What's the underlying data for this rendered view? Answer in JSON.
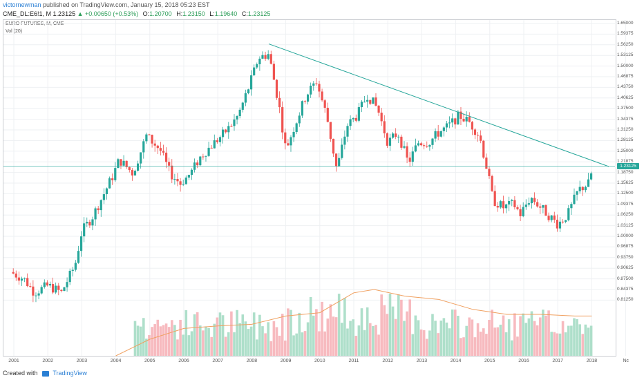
{
  "header": {
    "author": "victornewman",
    "published": "published on TradingView.com, January 15, 2018 05:23 EST"
  },
  "info": {
    "symbol": "CME_DL:E6!1, M",
    "price": "1.23125",
    "change_icon": "triangle-up-icon",
    "change": "+0.00650 (+0.53%)",
    "o_label": "O:",
    "o": "1.20700",
    "h_label": "H:",
    "h": "1.23150",
    "l_label": "L:",
    "l": "1.19640",
    "c_label": "C:",
    "c": "1.23125"
  },
  "legend": {
    "title": "EURO FUTURES, M, CME",
    "volume": "Vol (20)"
  },
  "colors": {
    "up": "#26a69a",
    "down": "#ef5350",
    "accent": "#2a7fd4",
    "trendline": "#26a69a",
    "ma": "#f0a060"
  },
  "chart_data": {
    "type": "candlestick",
    "price_axis": [
      "1.65000",
      "1.59375",
      "1.56250",
      "1.53125",
      "1.50000",
      "1.46875",
      "1.43750",
      "1.40625",
      "1.37500",
      "1.34375",
      "1.31250",
      "1.28125",
      "1.25000",
      "1.21875",
      "1.18750",
      "1.15625",
      "1.12500",
      "1.09375",
      "1.06250",
      "1.03125",
      "1.00000",
      "0.96875",
      "0.93750",
      "0.90625",
      "0.87500",
      "0.84375",
      "0.81250"
    ],
    "x_labels": [
      "2001",
      "2002",
      "2003",
      "2004",
      "2005",
      "2006",
      "2007",
      "2008",
      "2009",
      "2010",
      "2011",
      "2012",
      "2013",
      "2014",
      "2015",
      "2016",
      "2017",
      "2018",
      "Nc"
    ],
    "last_price": "1.23125",
    "price_path": [
      [
        2000.9,
        0.92
      ],
      [
        2001.3,
        0.9
      ],
      [
        2001.6,
        0.86
      ],
      [
        2002.0,
        0.88
      ],
      [
        2002.4,
        0.86
      ],
      [
        2002.8,
        0.94
      ],
      [
        2003.0,
        1.04
      ],
      [
        2003.3,
        1.08
      ],
      [
        2003.6,
        1.14
      ],
      [
        2003.9,
        1.2
      ],
      [
        2004.1,
        1.25
      ],
      [
        2004.5,
        1.21
      ],
      [
        2004.9,
        1.32
      ],
      [
        2005.3,
        1.28
      ],
      [
        2005.6,
        1.21
      ],
      [
        2005.9,
        1.18
      ],
      [
        2006.2,
        1.21
      ],
      [
        2006.5,
        1.26
      ],
      [
        2006.9,
        1.3
      ],
      [
        2007.3,
        1.34
      ],
      [
        2007.6,
        1.38
      ],
      [
        2007.9,
        1.46
      ],
      [
        2008.2,
        1.55
      ],
      [
        2008.5,
        1.56
      ],
      [
        2008.8,
        1.41
      ],
      [
        2009.0,
        1.28
      ],
      [
        2009.3,
        1.36
      ],
      [
        2009.6,
        1.44
      ],
      [
        2009.9,
        1.48
      ],
      [
        2010.2,
        1.38
      ],
      [
        2010.5,
        1.22
      ],
      [
        2010.8,
        1.35
      ],
      [
        2011.1,
        1.38
      ],
      [
        2011.4,
        1.44
      ],
      [
        2011.7,
        1.4
      ],
      [
        2012.0,
        1.3
      ],
      [
        2012.3,
        1.33
      ],
      [
        2012.6,
        1.24
      ],
      [
        2012.9,
        1.3
      ],
      [
        2013.2,
        1.3
      ],
      [
        2013.5,
        1.33
      ],
      [
        2013.8,
        1.35
      ],
      [
        2014.1,
        1.38
      ],
      [
        2014.4,
        1.36
      ],
      [
        2014.7,
        1.32
      ],
      [
        2014.9,
        1.23
      ],
      [
        2015.1,
        1.13
      ],
      [
        2015.4,
        1.11
      ],
      [
        2015.7,
        1.12
      ],
      [
        2015.9,
        1.09
      ],
      [
        2016.2,
        1.14
      ],
      [
        2016.5,
        1.11
      ],
      [
        2016.8,
        1.08
      ],
      [
        2017.0,
        1.06
      ],
      [
        2017.3,
        1.09
      ],
      [
        2017.6,
        1.16
      ],
      [
        2017.9,
        1.18
      ],
      [
        2018.05,
        1.23125
      ]
    ],
    "trendline": [
      [
        2008.5,
        1.59
      ],
      [
        2018.5,
        1.23
      ]
    ],
    "volume_ma_path": [
      [
        2004.0,
        0.0
      ],
      [
        2005.0,
        0.2
      ],
      [
        2006.0,
        0.33
      ],
      [
        2007.0,
        0.36
      ],
      [
        2008.0,
        0.38
      ],
      [
        2009.0,
        0.48
      ],
      [
        2010.0,
        0.52
      ],
      [
        2011.0,
        0.76
      ],
      [
        2011.6,
        0.8
      ],
      [
        2012.5,
        0.72
      ],
      [
        2013.5,
        0.68
      ],
      [
        2014.5,
        0.56
      ],
      [
        2015.5,
        0.5
      ],
      [
        2016.5,
        0.5
      ],
      [
        2017.5,
        0.48
      ],
      [
        2018.0,
        0.48
      ]
    ]
  },
  "footer": {
    "created_with": "Created with",
    "brand": "TradingView"
  }
}
